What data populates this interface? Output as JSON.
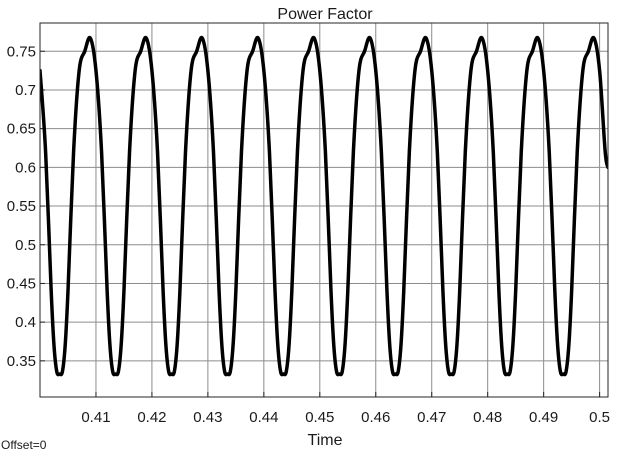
{
  "chart_data": {
    "type": "line",
    "title": "Power Factor",
    "xlabel": "Time",
    "ylabel": "",
    "offset_label": "Offset=0",
    "xlim": [
      0.4,
      0.5015
    ],
    "ylim": [
      0.3033,
      0.7865
    ],
    "xticks": [
      0.41,
      0.42,
      0.43,
      0.44,
      0.45,
      0.46,
      0.47,
      0.48,
      0.49,
      0.5
    ],
    "xtick_labels": [
      "0.41",
      "0.42",
      "0.43",
      "0.44",
      "0.45",
      "0.46",
      "0.47",
      "0.48",
      "0.49",
      "0.5"
    ],
    "yticks": [
      0.35,
      0.4,
      0.45,
      0.5,
      0.55,
      0.6,
      0.65,
      0.7,
      0.75
    ],
    "ytick_labels": [
      "0.35",
      "0.4",
      "0.45",
      "0.5",
      "0.55",
      "0.6",
      "0.65",
      "0.7",
      "0.75"
    ],
    "grid": true,
    "series": [
      {
        "color": "#000000",
        "description": "periodic signal, period 0.01 s, peaks near 0.767 at t≈0.409+0.01k, troughs near 0.333 at t≈0.4035+0.01k",
        "x": [
          0.4,
          0.401,
          0.402,
          0.4025,
          0.403,
          0.4035,
          0.404,
          0.4045,
          0.405,
          0.406,
          0.407,
          0.408,
          0.409,
          0.41,
          0.411,
          0.412,
          0.4125,
          0.413,
          0.4135,
          0.414,
          0.4145,
          0.415,
          0.416,
          0.417,
          0.418,
          0.419,
          0.42,
          0.421,
          0.422,
          0.4225,
          0.423,
          0.4235,
          0.424,
          0.4245,
          0.425,
          0.426,
          0.427,
          0.428,
          0.429,
          0.43,
          0.431,
          0.432,
          0.4325,
          0.433,
          0.4335,
          0.434,
          0.4345,
          0.435,
          0.436,
          0.437,
          0.438,
          0.439,
          0.44,
          0.441,
          0.442,
          0.4425,
          0.443,
          0.4435,
          0.444,
          0.4445,
          0.445,
          0.446,
          0.447,
          0.448,
          0.449,
          0.45,
          0.451,
          0.452,
          0.4525,
          0.453,
          0.4535,
          0.454,
          0.4545,
          0.455,
          0.456,
          0.457,
          0.458,
          0.459,
          0.46,
          0.461,
          0.462,
          0.4625,
          0.463,
          0.4635,
          0.464,
          0.4645,
          0.465,
          0.466,
          0.467,
          0.468,
          0.469,
          0.47,
          0.471,
          0.472,
          0.4725,
          0.473,
          0.4735,
          0.474,
          0.4745,
          0.475,
          0.476,
          0.477,
          0.478,
          0.479,
          0.48,
          0.481,
          0.482,
          0.4825,
          0.483,
          0.4835,
          0.484,
          0.4845,
          0.485,
          0.486,
          0.487,
          0.488,
          0.489,
          0.49,
          0.491,
          0.492,
          0.4925,
          0.493,
          0.4935,
          0.494,
          0.4945,
          0.495,
          0.496,
          0.497,
          0.498,
          0.499,
          0.5,
          0.501,
          0.5015
        ],
        "y": [
          0.725,
          0.62,
          0.44,
          0.37,
          0.336,
          0.333,
          0.336,
          0.37,
          0.44,
          0.62,
          0.725,
          0.75,
          0.767,
          0.725,
          0.62,
          0.44,
          0.37,
          0.336,
          0.333,
          0.336,
          0.37,
          0.44,
          0.62,
          0.725,
          0.75,
          0.767,
          0.725,
          0.62,
          0.44,
          0.37,
          0.336,
          0.333,
          0.336,
          0.37,
          0.44,
          0.62,
          0.725,
          0.75,
          0.767,
          0.725,
          0.62,
          0.44,
          0.37,
          0.336,
          0.333,
          0.336,
          0.37,
          0.44,
          0.62,
          0.725,
          0.75,
          0.767,
          0.725,
          0.62,
          0.44,
          0.37,
          0.336,
          0.333,
          0.336,
          0.37,
          0.44,
          0.62,
          0.725,
          0.75,
          0.767,
          0.725,
          0.62,
          0.44,
          0.37,
          0.336,
          0.333,
          0.336,
          0.37,
          0.44,
          0.62,
          0.725,
          0.75,
          0.767,
          0.725,
          0.62,
          0.44,
          0.37,
          0.336,
          0.333,
          0.336,
          0.37,
          0.44,
          0.62,
          0.725,
          0.75,
          0.767,
          0.725,
          0.62,
          0.44,
          0.37,
          0.336,
          0.333,
          0.336,
          0.37,
          0.44,
          0.62,
          0.725,
          0.75,
          0.767,
          0.725,
          0.62,
          0.44,
          0.37,
          0.336,
          0.333,
          0.336,
          0.37,
          0.44,
          0.62,
          0.725,
          0.75,
          0.767,
          0.725,
          0.62,
          0.44,
          0.37,
          0.336,
          0.333,
          0.336,
          0.37,
          0.44,
          0.62,
          0.725,
          0.75,
          0.767,
          0.725,
          0.62,
          0.6
        ]
      }
    ]
  }
}
